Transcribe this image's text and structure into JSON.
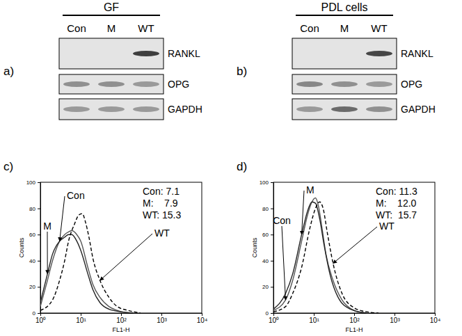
{
  "chart_data": [
    {
      "type": "gel",
      "panel": "a)",
      "title": "GF",
      "lanes": [
        "Con",
        "M",
        "WT"
      ],
      "series": [
        {
          "name": "RANKL",
          "values": [
            0,
            0,
            0.9
          ]
        },
        {
          "name": "OPG",
          "values": [
            0.45,
            0.45,
            0.4
          ]
        },
        {
          "name": "GAPDH",
          "values": [
            0.4,
            0.4,
            0.4
          ]
        }
      ]
    },
    {
      "type": "gel",
      "panel": "b)",
      "title": "PDL cells",
      "lanes": [
        "Con",
        "M",
        "WT"
      ],
      "series": [
        {
          "name": "RANKL",
          "values": [
            0,
            0,
            0.85
          ]
        },
        {
          "name": "OPG",
          "values": [
            0.5,
            0.45,
            0.4
          ]
        },
        {
          "name": "GAPDH",
          "values": [
            0.4,
            0.65,
            0.45
          ]
        }
      ]
    },
    {
      "type": "line",
      "panel": "c)",
      "x_label": "FL1-H",
      "y_label": "Counts",
      "log": "x",
      "xlim": [
        1,
        10000
      ],
      "xticks": [
        {
          "value": 1,
          "label": "10⁰"
        },
        {
          "value": 10,
          "label": "10¹"
        },
        {
          "value": 100,
          "label": "10²"
        },
        {
          "value": 1000,
          "label": "10³"
        },
        {
          "value": 10000,
          "label": "10⁴"
        }
      ],
      "ylim": [
        0,
        100
      ],
      "yticks": [
        0,
        20,
        40,
        60,
        80,
        100
      ],
      "annotations": [
        "Con: 7.1",
        "M:    7.9",
        "WT: 15.3"
      ],
      "series": [
        {
          "name": "Con",
          "color": "#555555",
          "line_style": "solid",
          "x": [
            1,
            1.5,
            2,
            3,
            4,
            5,
            6,
            8,
            10,
            15,
            20,
            30,
            50,
            80,
            100,
            200
          ],
          "values": [
            5,
            25,
            40,
            55,
            60,
            62,
            63,
            60,
            55,
            35,
            22,
            12,
            5,
            2,
            1,
            0
          ]
        },
        {
          "name": "M",
          "color": "#222222",
          "line_style": "solid",
          "x": [
            1,
            1.5,
            2,
            3,
            4,
            5,
            6,
            8,
            10,
            15,
            20,
            30,
            50,
            100,
            200
          ],
          "values": [
            8,
            30,
            45,
            55,
            58,
            60,
            60,
            55,
            48,
            30,
            18,
            8,
            3,
            1,
            0
          ]
        },
        {
          "name": "WT",
          "color": "#000000",
          "line_style": "dashed",
          "x": [
            1,
            2,
            3,
            4,
            5,
            7,
            9,
            11,
            13,
            16,
            20,
            30,
            50,
            80,
            150,
            300
          ],
          "values": [
            2,
            10,
            25,
            40,
            55,
            68,
            75,
            76,
            70,
            58,
            42,
            25,
            12,
            5,
            2,
            0
          ]
        }
      ]
    },
    {
      "type": "line",
      "panel": "d)",
      "x_label": "FL1-H",
      "y_label": "Counts",
      "log": "x",
      "xlim": [
        1,
        10000
      ],
      "xticks": [
        {
          "value": 1,
          "label": "10⁰"
        },
        {
          "value": 10,
          "label": "10¹"
        },
        {
          "value": 100,
          "label": "10²"
        },
        {
          "value": 1000,
          "label": "10³"
        },
        {
          "value": 10000,
          "label": "10⁴"
        }
      ],
      "ylim": [
        0,
        100
      ],
      "yticks": [
        0,
        20,
        40,
        60,
        80,
        100
      ],
      "annotations": [
        "Con: 11.3",
        "M:    12.0",
        "WT:  15.7"
      ],
      "series": [
        {
          "name": "Con",
          "color": "#555555",
          "line_style": "solid",
          "x": [
            1,
            2,
            3,
            5,
            7,
            9,
            11,
            13,
            16,
            20,
            30,
            50,
            100,
            200
          ],
          "values": [
            2,
            10,
            25,
            55,
            75,
            85,
            88,
            82,
            65,
            45,
            25,
            10,
            2,
            0
          ]
        },
        {
          "name": "M",
          "color": "#222222",
          "line_style": "solid",
          "x": [
            1,
            2,
            3,
            5,
            7,
            9,
            11,
            14,
            18,
            25,
            40,
            80,
            200
          ],
          "values": [
            3,
            15,
            30,
            60,
            78,
            85,
            84,
            72,
            52,
            30,
            12,
            3,
            0
          ]
        },
        {
          "name": "WT",
          "color": "#000000",
          "line_style": "dashed",
          "x": [
            1,
            2,
            3,
            5,
            8,
            11,
            14,
            17,
            22,
            30,
            50,
            100,
            200,
            400
          ],
          "values": [
            1,
            5,
            15,
            35,
            65,
            80,
            85,
            80,
            60,
            38,
            15,
            4,
            1,
            0
          ]
        }
      ]
    }
  ]
}
